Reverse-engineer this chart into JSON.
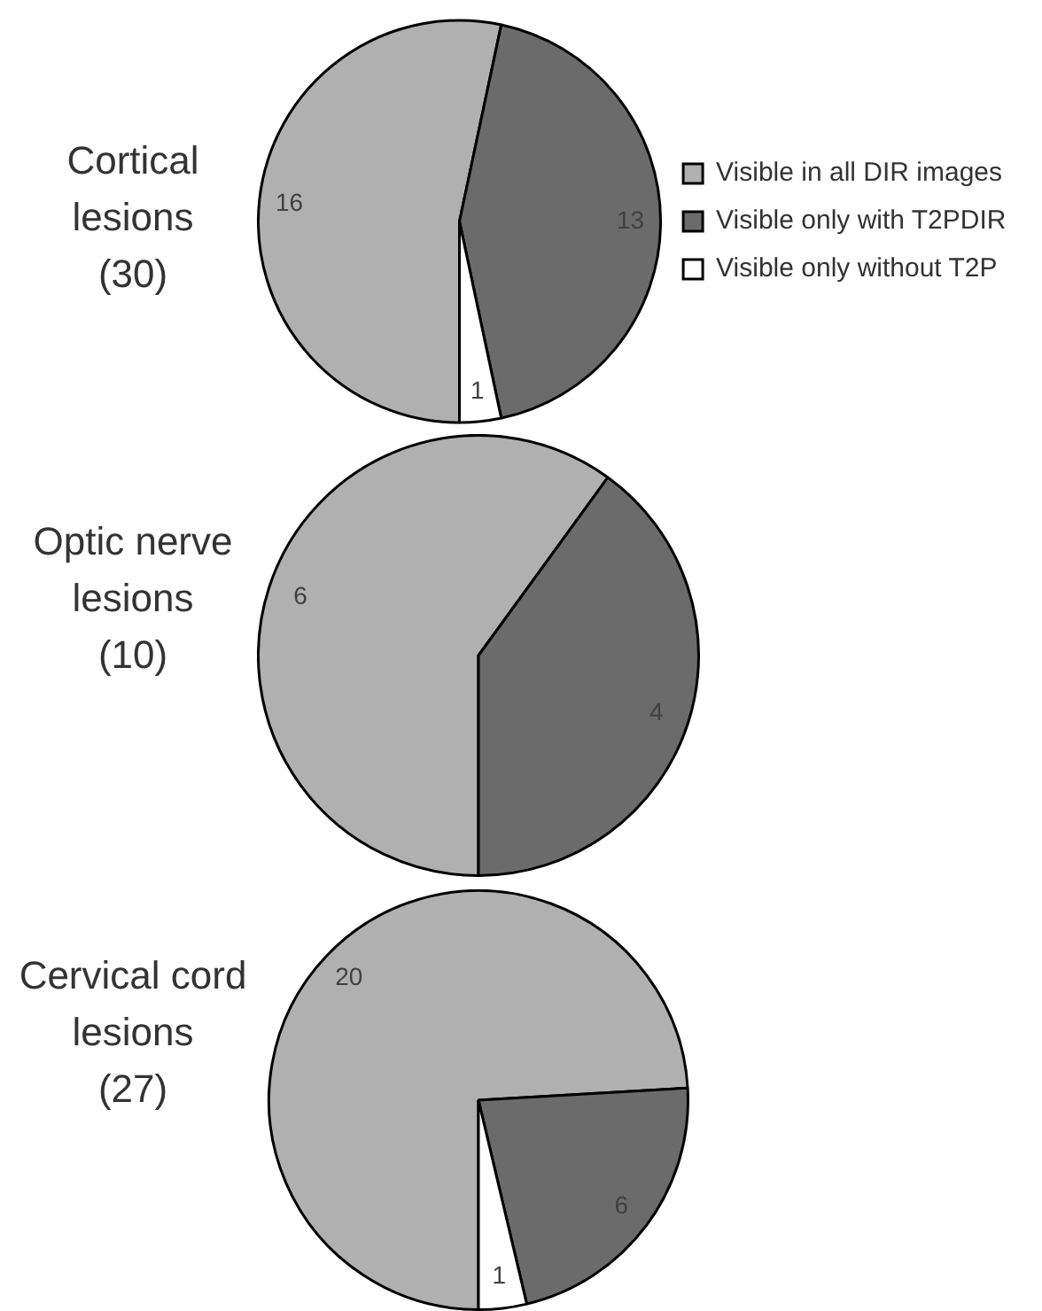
{
  "chart_data": [
    {
      "type": "pie",
      "title": "Cortical\nlesions\n(30)",
      "categories": [
        "Visible in all DIR images",
        "Visible only with T2PDIR",
        "Visible only without T2P"
      ],
      "values": [
        16,
        13,
        1
      ],
      "colors": [
        "#b0b0b0",
        "#6b6b6b",
        "#ffffff"
      ],
      "data_labels": true,
      "legend": "right"
    },
    {
      "type": "pie",
      "title": "Optic nerve\nlesions\n(10)",
      "categories": [
        null,
        null
      ],
      "values": [
        6,
        4
      ],
      "colors": [
        "#b0b0b0",
        "#6b6b6b"
      ],
      "data_labels": true
    },
    {
      "type": "pie",
      "title": "Cervical cord\nlesions\n(27)",
      "categories": [
        null,
        null,
        null
      ],
      "values": [
        20,
        6,
        1
      ],
      "colors": [
        "#b0b0b0",
        "#6b6b6b",
        "#ffffff"
      ],
      "data_labels": true
    }
  ]
}
